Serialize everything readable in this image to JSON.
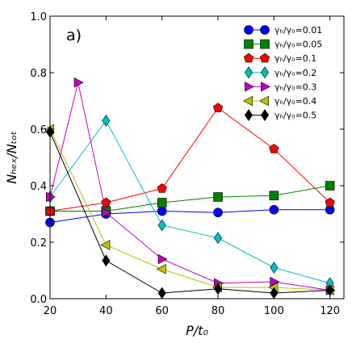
{
  "chart_data": {
    "type": "line",
    "panel_label": "a)",
    "xlabel": "P/t₀",
    "ylabel": "Nₕₑₓ/Nₜₒₜ",
    "xlim": [
      20,
      125
    ],
    "ylim": [
      0.0,
      1.0
    ],
    "x_ticks": [
      "20",
      "40",
      "60",
      "80",
      "100",
      "120"
    ],
    "y_ticks": [
      "0.0",
      "0.2",
      "0.4",
      "0.6",
      "0.8",
      "1.0"
    ],
    "grid": false,
    "legend_position": "top-right",
    "series": [
      {
        "name": "γₕ/γ₀=0.01",
        "color": "#0000ff",
        "marker": "circle",
        "x": [
          20,
          40,
          60,
          80,
          100,
          120
        ],
        "y": [
          0.27,
          0.3,
          0.31,
          0.305,
          0.315,
          0.315
        ]
      },
      {
        "name": "γₕ/γ₀=0.05",
        "color": "#008000",
        "marker": "square",
        "x": [
          20,
          40,
          60,
          80,
          100,
          120
        ],
        "y": [
          0.31,
          0.31,
          0.34,
          0.36,
          0.365,
          0.4
        ]
      },
      {
        "name": "γₕ/γ₀=0.1",
        "color": "#ff0000",
        "marker": "pentagon",
        "x": [
          20,
          40,
          60,
          80,
          100,
          120
        ],
        "y": [
          0.31,
          0.34,
          0.39,
          0.675,
          0.53,
          0.34
        ]
      },
      {
        "name": "γₕ/γ₀=0.2",
        "color": "#00bfbf",
        "marker": "diamond",
        "x": [
          20,
          40,
          60,
          80,
          100,
          120
        ],
        "y": [
          0.36,
          0.63,
          0.26,
          0.215,
          0.11,
          0.055
        ]
      },
      {
        "name": "γₕ/γ₀=0.3",
        "color": "#bf00bf",
        "marker": "triangle-right",
        "x": [
          20,
          30,
          40,
          60,
          80,
          100,
          120
        ],
        "y": [
          0.36,
          0.765,
          0.305,
          0.14,
          0.055,
          0.06,
          0.03
        ]
      },
      {
        "name": "γₕ/γ₀=0.4",
        "color": "#bfbf00",
        "marker": "triangle-left",
        "x": [
          20,
          40,
          60,
          80,
          100,
          120
        ],
        "y": [
          0.6,
          0.19,
          0.105,
          0.04,
          0.04,
          0.03
        ]
      },
      {
        "name": "γₕ/γ₀=0.5",
        "color": "#000000",
        "marker": "diamond",
        "x": [
          20,
          40,
          60,
          80,
          100,
          120
        ],
        "y": [
          0.59,
          0.135,
          0.02,
          0.035,
          0.02,
          0.03
        ]
      }
    ]
  }
}
